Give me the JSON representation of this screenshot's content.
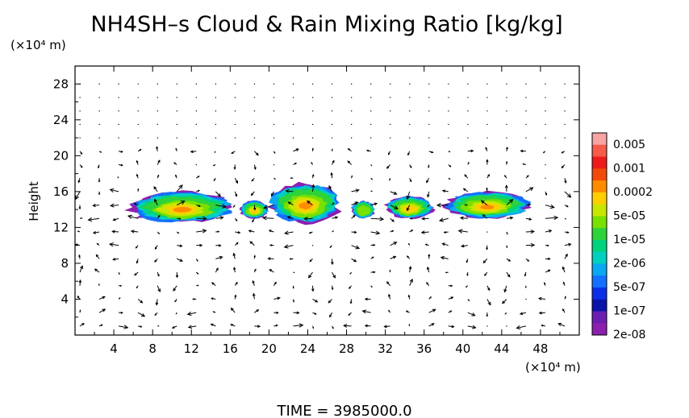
{
  "chart_data": {
    "type": "heatmap",
    "title": "NH4SH–s Cloud & Rain Mixing Ratio [kg/kg]",
    "xlabel": "",
    "ylabel": "Height",
    "x_unit": "(×10⁴ m)",
    "y_unit": "(×10⁴ m)",
    "footer": "TIME = 3985000.0",
    "xlim": [
      0,
      52
    ],
    "ylim": [
      0,
      30
    ],
    "x_ticks": [
      "4",
      "8",
      "12",
      "16",
      "20",
      "24",
      "28",
      "32",
      "36",
      "40",
      "44",
      "48"
    ],
    "y_ticks": [
      "4",
      "8",
      "12",
      "16",
      "20",
      "24",
      "28"
    ],
    "colorbar": {
      "labels": [
        "0.005",
        "0.001",
        "0.0002",
        "5e-05",
        "1e-05",
        "2e-06",
        "5e-07",
        "1e-07",
        "2e-08"
      ],
      "colors": [
        "#f7a4a4",
        "#f55a4a",
        "#ee1a1a",
        "#f24a0a",
        "#ff8c00",
        "#ffcf00",
        "#c8e600",
        "#7ae000",
        "#2ed33a",
        "#00d27e",
        "#00d0c0",
        "#0aa8f0",
        "#1470ff",
        "#0b2fe8",
        "#0a14a8",
        "#6a1fb0",
        "#8c1fae"
      ]
    },
    "cloud_cells": [
      {
        "x": [
          5.5,
          16.5
        ],
        "y": [
          12.5,
          16.0
        ],
        "peak": 0.0002
      },
      {
        "x": [
          17.0,
          20.0
        ],
        "y": [
          13.0,
          15.0
        ],
        "peak": 5e-05
      },
      {
        "x": [
          20.0,
          27.5
        ],
        "y": [
          12.5,
          17.0
        ],
        "peak": 0.0002
      },
      {
        "x": [
          28.5,
          31.0
        ],
        "y": [
          13.0,
          15.0
        ],
        "peak": 1e-05
      },
      {
        "x": [
          32.0,
          37.0
        ],
        "y": [
          13.0,
          15.5
        ],
        "peak": 5e-05
      },
      {
        "x": [
          38.0,
          47.0
        ],
        "y": [
          13.0,
          16.0
        ],
        "peak": 0.0002
      }
    ],
    "wind_field": {
      "type": "vector",
      "grid_dx": 2,
      "grid_dz": 1.5
    }
  }
}
